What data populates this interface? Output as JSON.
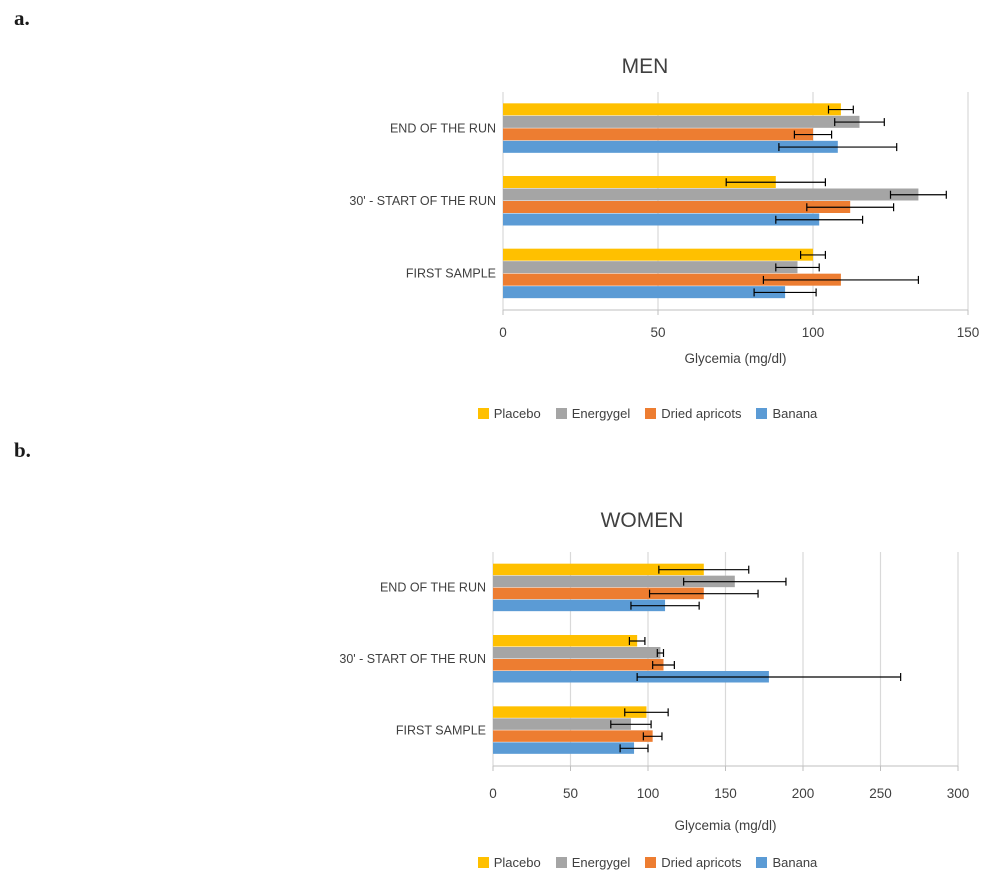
{
  "page": {
    "figure_label_a": "a.",
    "figure_label_b": "b."
  },
  "styles": {
    "background": "#FFFFFF",
    "grid_color": "#D9D9D9",
    "axis_line_color": "#BFBFBF",
    "text_color": "#404040",
    "error_bar_color": "#000000"
  },
  "chart_data": [
    {
      "type": "bar",
      "orientation": "horizontal",
      "title": "MEN",
      "xlabel": "Glycemia (mg/dl)",
      "xlim": [
        0,
        150
      ],
      "xticks": [
        0,
        50,
        100,
        150
      ],
      "grid": true,
      "legend_position": "bottom",
      "categories": [
        "END OF THE RUN",
        "30' - START OF THE RUN",
        "FIRST SAMPLE"
      ],
      "series": [
        {
          "name": "Placebo",
          "color": "#FFC000",
          "values": [
            109,
            88,
            100
          ],
          "error_bars": [
            4,
            16,
            4
          ]
        },
        {
          "name": "Energygel",
          "color": "#A5A5A5",
          "values": [
            115,
            134,
            95
          ],
          "error_bars": [
            8,
            9,
            7
          ]
        },
        {
          "name": "Dried apricots",
          "color": "#ED7D31",
          "values": [
            100,
            112,
            109
          ],
          "error_bars": [
            6,
            14,
            25
          ]
        },
        {
          "name": "Banana",
          "color": "#5B9BD5",
          "values": [
            108,
            102,
            91
          ],
          "error_bars": [
            19,
            14,
            10
          ]
        }
      ]
    },
    {
      "type": "bar",
      "orientation": "horizontal",
      "title": "WOMEN",
      "xlabel": "Glycemia (mg/dl)",
      "xlim": [
        0,
        300
      ],
      "xticks": [
        0,
        50,
        100,
        150,
        200,
        250,
        300
      ],
      "grid": true,
      "legend_position": "bottom",
      "categories": [
        "END OF THE RUN",
        "30' - START OF THE RUN",
        "FIRST SAMPLE"
      ],
      "series": [
        {
          "name": "Placebo",
          "color": "#FFC000",
          "values": [
            136,
            93,
            99
          ],
          "error_bars": [
            29,
            5,
            14
          ]
        },
        {
          "name": "Energygel",
          "color": "#A5A5A5",
          "values": [
            156,
            108,
            89
          ],
          "error_bars": [
            33,
            2,
            13
          ]
        },
        {
          "name": "Dried apricots",
          "color": "#ED7D31",
          "values": [
            136,
            110,
            103
          ],
          "error_bars": [
            35,
            7,
            6
          ]
        },
        {
          "name": "Banana",
          "color": "#5B9BD5",
          "values": [
            111,
            178,
            91
          ],
          "error_bars": [
            22,
            85,
            9
          ]
        }
      ]
    }
  ]
}
